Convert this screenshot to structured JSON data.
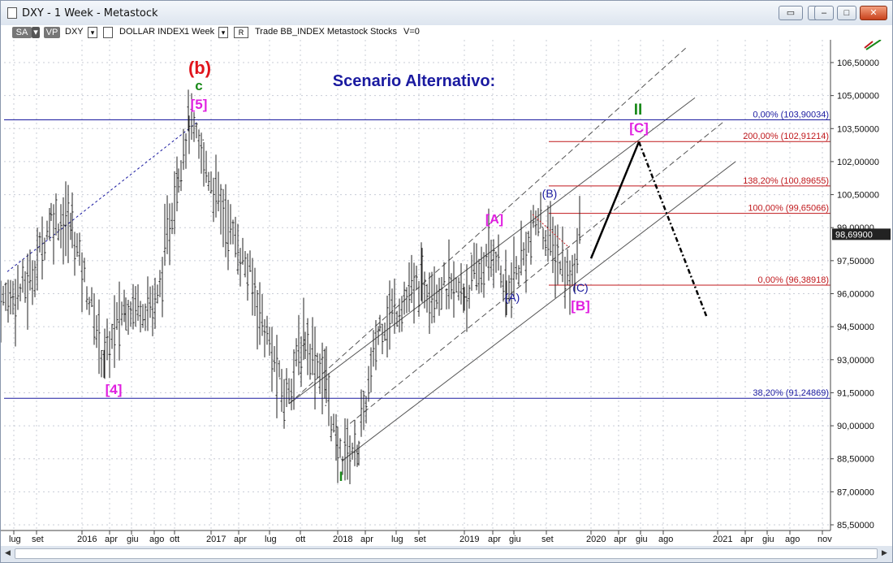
{
  "window": {
    "title": "DXY - 1 Week - Metastock",
    "minimize_label": "–",
    "maximize_label": "□",
    "close_label": "✕",
    "restore_label": "▭",
    "pin_label": "◦"
  },
  "toolbar": {
    "sa": "SA",
    "vp": "VP",
    "symbol": "DXY",
    "name": "DOLLAR INDEX",
    "period": "1 Week",
    "rest": "Trade  BB_INDEX  Metastock  Stocks",
    "v": "V=0",
    "dropdown_glyph": "▾",
    "r_label": "R"
  },
  "annotations": {
    "scenario_title": "Scenario Alternativo:",
    "b_top": "(b)",
    "c_small": "c",
    "five": "[5]",
    "four": "[4]",
    "wave_I": "I",
    "wave_II": "II",
    "A_bracket": "[A]",
    "A_paren": "(A)",
    "B_paren": "(B)",
    "C_paren": "(C)",
    "B_bracket": "[B]",
    "C_bracket": "[C]"
  },
  "fib_levels": [
    {
      "label": "0,00% (103,90034)",
      "value": 103.90034,
      "color": "#1a1aa0"
    },
    {
      "label": "200,00% (102,91214)",
      "value": 102.91214,
      "color": "#c0181c"
    },
    {
      "label": "138,20% (100,89655)",
      "value": 100.89655,
      "color": "#c0181c"
    },
    {
      "label": "100,00% (99,65066)",
      "value": 99.65066,
      "color": "#c0181c"
    },
    {
      "label": "0,00% (96,38918)",
      "value": 96.38918,
      "color": "#c0181c"
    },
    {
      "label": "38,20% (91,24869)",
      "value": 91.24869,
      "color": "#1a1aa0"
    }
  ],
  "chart_data": {
    "type": "bar",
    "title": "Scenario Alternativo:",
    "instrument": "DXY",
    "timeframe": "1 Week",
    "last_price": 98.699,
    "last_price_label": "98,69900",
    "ylim": [
      85.0,
      107.5
    ],
    "y_ticks": [
      85.5,
      87.0,
      88.5,
      90.0,
      91.5,
      93.0,
      94.5,
      96.0,
      97.5,
      99.0,
      100.5,
      102.0,
      103.5,
      105.0,
      106.5
    ],
    "y_tick_labels": [
      "85,50000",
      "87,00000",
      "88,50000",
      "90,00000",
      "91,50000",
      "93,00000",
      "94,50000",
      "96,00000",
      "97,50000",
      "99,00000",
      "100,50000",
      "102,00000",
      "103,50000",
      "105,00000",
      "106,50000"
    ],
    "x_tick_labels": [
      "lug",
      "set",
      "2016",
      "apr",
      "giu",
      "ago",
      "ott",
      "2017",
      "apr",
      "lug",
      "ott",
      "2018",
      "apr",
      "lug",
      "set",
      "2019",
      "apr",
      "giu",
      "set",
      "2020",
      "apr",
      "giu",
      "ago",
      "2021",
      "apr",
      "giu",
      "ago",
      "nov"
    ],
    "price_path": [
      {
        "date": "2015-06",
        "value": 95.5
      },
      {
        "date": "2015-09",
        "value": 96.5
      },
      {
        "date": "2015-11",
        "value": 99.5
      },
      {
        "date": "2016-01",
        "value": 99.0
      },
      {
        "date": "2016-04",
        "value": 93.0
      },
      {
        "date": "2016-06",
        "value": 95.5
      },
      {
        "date": "2016-09",
        "value": 95.5
      },
      {
        "date": "2016-11",
        "value": 101.5
      },
      {
        "date": "2016-12",
        "value": 103.8
      },
      {
        "date": "2017-03",
        "value": 100.0
      },
      {
        "date": "2017-06",
        "value": 96.5
      },
      {
        "date": "2017-09",
        "value": 91.2
      },
      {
        "date": "2017-11",
        "value": 94.0
      },
      {
        "date": "2018-01",
        "value": 92.0
      },
      {
        "date": "2018-02",
        "value": 88.7
      },
      {
        "date": "2018-04",
        "value": 89.0
      },
      {
        "date": "2018-06",
        "value": 94.5
      },
      {
        "date": "2018-10",
        "value": 96.5
      },
      {
        "date": "2019-02",
        "value": 96.0
      },
      {
        "date": "2019-05",
        "value": 98.0
      },
      {
        "date": "2019-06",
        "value": 95.8
      },
      {
        "date": "2019-09",
        "value": 99.4
      },
      {
        "date": "2019-12",
        "value": 96.6
      },
      {
        "date": "2020-01",
        "value": 98.7
      }
    ],
    "projection": [
      {
        "date": "2020-01",
        "value": 97.6
      },
      {
        "date": "2020-06",
        "value": 102.9
      },
      {
        "date": "2020-12",
        "value": 94.9
      }
    ]
  }
}
